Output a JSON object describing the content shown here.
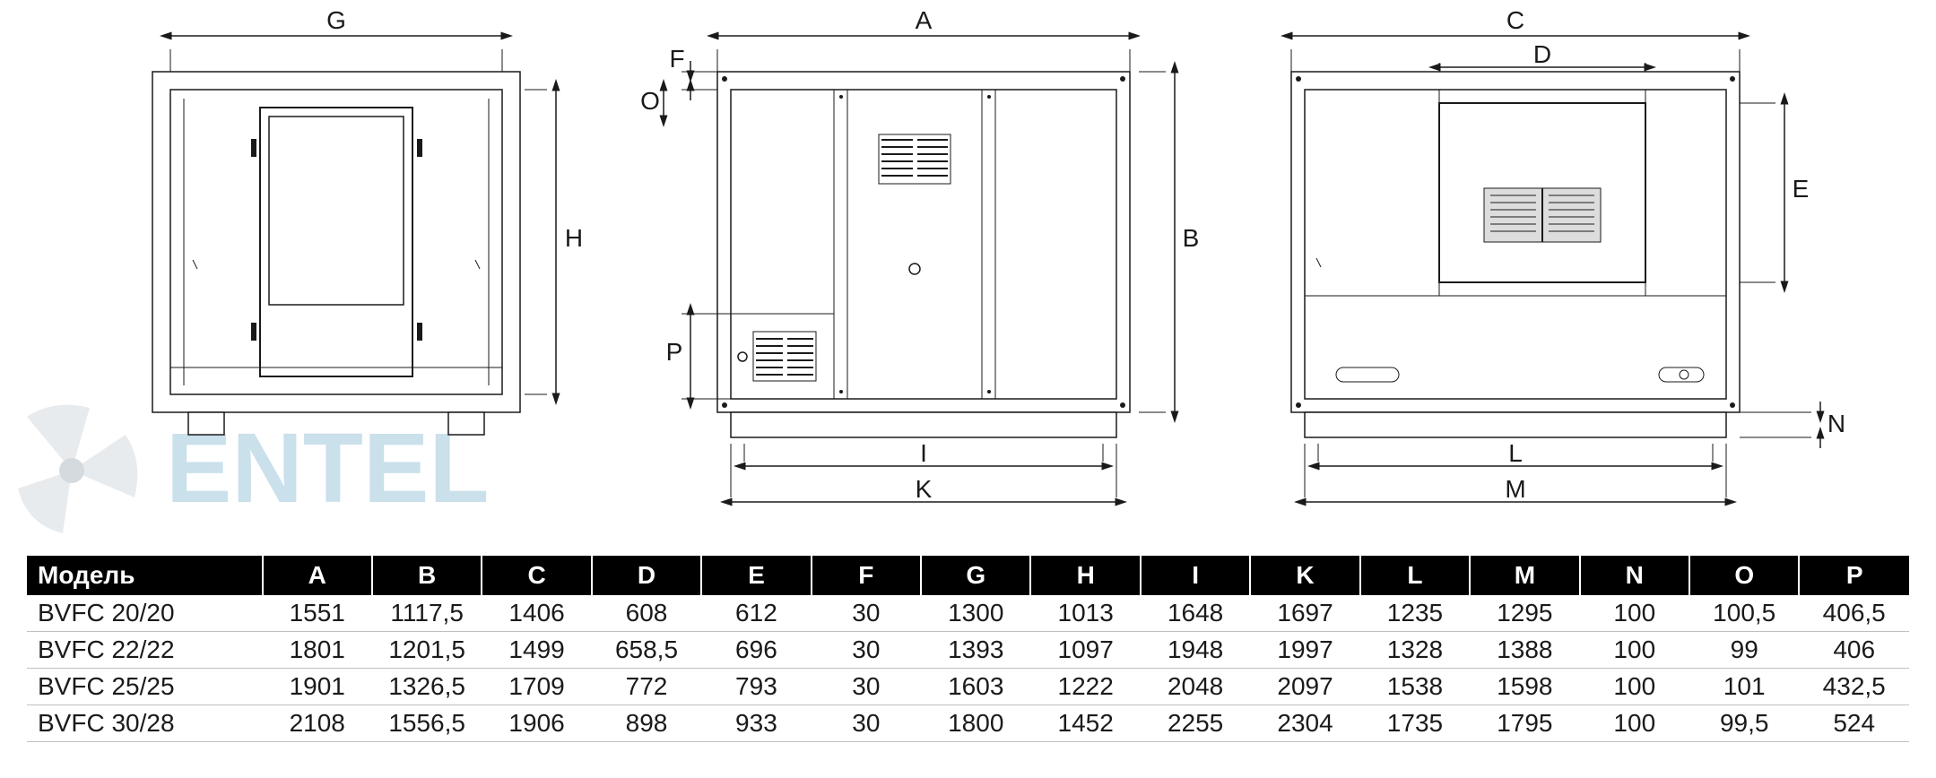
{
  "table": {
    "header_bg": "#000000",
    "header_fg": "#ffffff",
    "row_fg": "#1a1a1a",
    "font_size": 28,
    "columns": [
      "Модель",
      "A",
      "B",
      "C",
      "D",
      "E",
      "F",
      "G",
      "H",
      "I",
      "K",
      "L",
      "M",
      "N",
      "O",
      "P"
    ],
    "col_widths_pct": [
      12.5,
      5.83,
      5.83,
      5.83,
      5.83,
      5.83,
      5.83,
      5.83,
      5.83,
      5.83,
      5.83,
      5.83,
      5.83,
      5.83,
      5.83,
      5.83
    ],
    "rows": [
      [
        "BVFC 20/20",
        "1551",
        "1117,5",
        "1406",
        "608",
        "612",
        "30",
        "1300",
        "1013",
        "1648",
        "1697",
        "1235",
        "1295",
        "100",
        "100,5",
        "406,5"
      ],
      [
        "BVFC 22/22",
        "1801",
        "1201,5",
        "1499",
        "658,5",
        "696",
        "30",
        "1393",
        "1097",
        "1948",
        "1997",
        "1328",
        "1388",
        "100",
        "99",
        "406"
      ],
      [
        "BVFC 25/25",
        "1901",
        "1326,5",
        "1709",
        "772",
        "793",
        "30",
        "1603",
        "1222",
        "2048",
        "2097",
        "1538",
        "1598",
        "100",
        "101",
        "432,5"
      ],
      [
        "BVFC 30/28",
        "2108",
        "1556,5",
        "1906",
        "898",
        "933",
        "30",
        "1800",
        "1452",
        "2255",
        "2304",
        "1735",
        "1795",
        "100",
        "99,5",
        "524"
      ]
    ]
  },
  "drawings": {
    "stroke": "#1a1a1a",
    "panel_fill": "#f0f0f0",
    "dim_font_size": 28,
    "view1": {
      "label_top": "G",
      "label_right": "H"
    },
    "view2": {
      "label_top": "A",
      "label_right": "B",
      "label_bottom1": "I",
      "label_bottom2": "K",
      "label_left_top": "F",
      "label_left_mid": "O",
      "label_left_bot": "P"
    },
    "view3": {
      "label_top1": "C",
      "label_top2": "D",
      "label_right1": "E",
      "label_right2": "N",
      "label_bottom1": "L",
      "label_bottom2": "M"
    }
  },
  "watermark": {
    "text": "ENTEL",
    "color_fan": "#6b7a88",
    "color_text": "#6aa7c8",
    "opacity": 0.35
  }
}
